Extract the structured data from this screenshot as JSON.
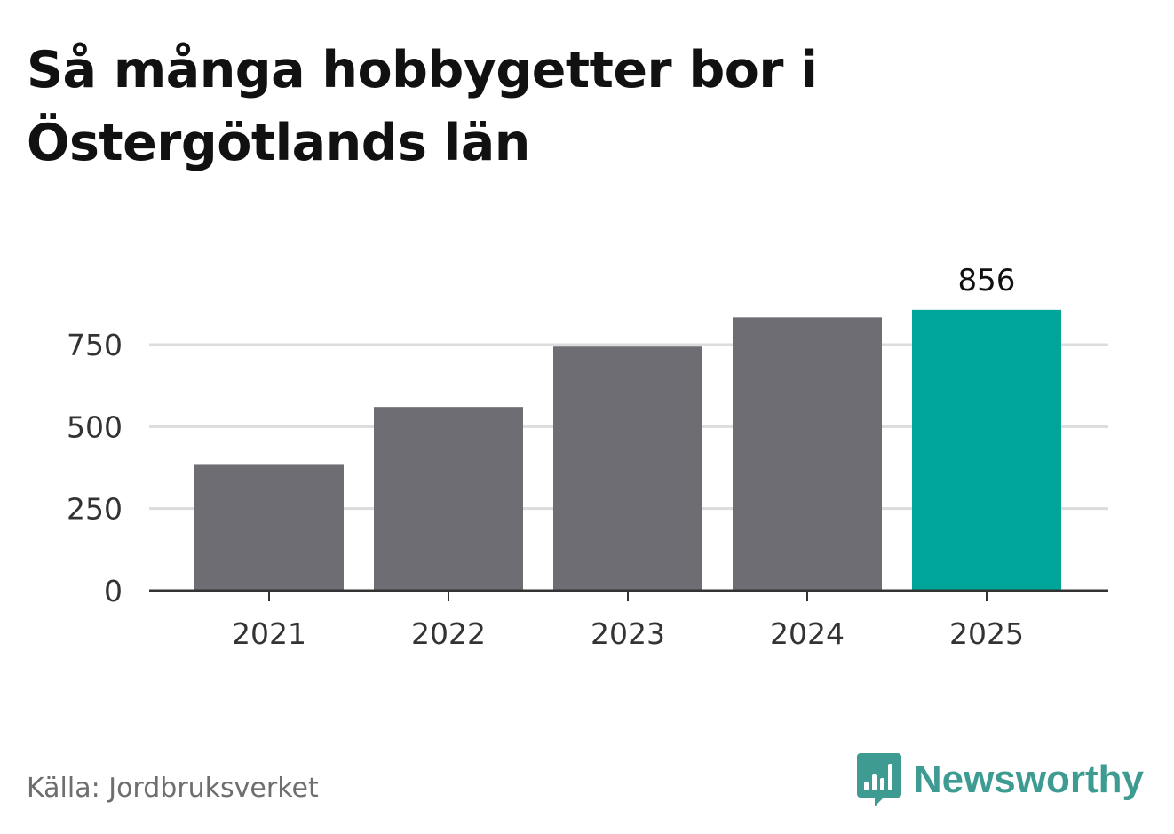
{
  "title": "Så många hobbygetter bor i Östergötlands län",
  "source": "Källa: Jordbruksverket",
  "brand": {
    "name": "Newsworthy",
    "icon": "bar-chart-speech-icon",
    "color": "#3d9b92"
  },
  "chart_data": {
    "type": "bar",
    "title": "Så många hobbygetter bor i Östergötlands län",
    "xlabel": "",
    "ylabel": "",
    "categories": [
      "2021",
      "2022",
      "2023",
      "2024",
      "2025"
    ],
    "values": [
      386,
      560,
      744,
      833,
      856
    ],
    "ylim": [
      0,
      900
    ],
    "yticks": [
      0,
      250,
      500,
      750
    ],
    "grid": true,
    "data_labels": [
      null,
      null,
      null,
      null,
      "856"
    ],
    "colors": {
      "default": "#6e6d73",
      "highlight": "#00a59a"
    },
    "highlight_index": 4
  }
}
